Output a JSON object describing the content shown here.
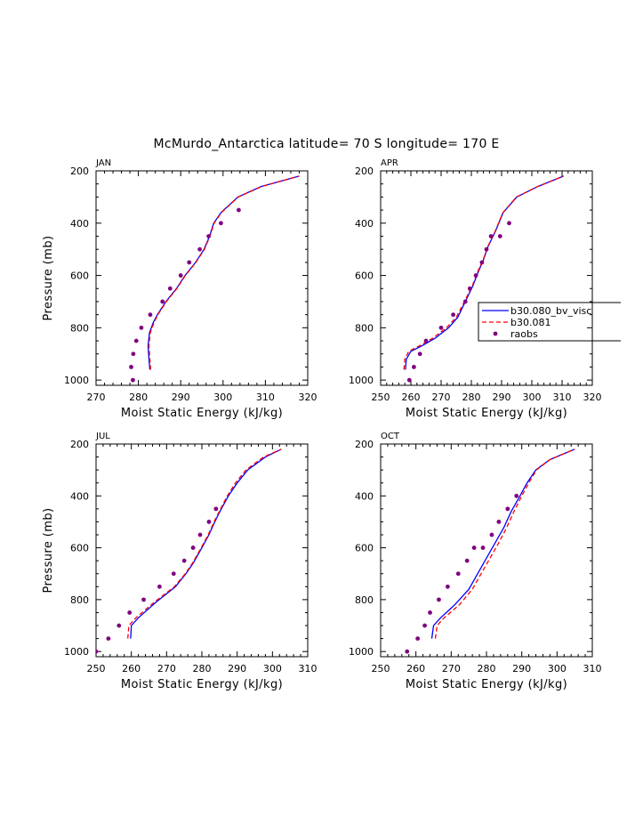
{
  "title": "McMurdo_Antarctica  latitude= 70 S longitude= 170 E",
  "colors": {
    "model_a": "#0000ff",
    "model_b": "#ff0000",
    "obs": "#800080",
    "axis": "#000000"
  },
  "legend": {
    "entries": [
      "b30.080_bv_visc",
      "b30.081",
      "raobs"
    ]
  },
  "chart_data": [
    {
      "type": "line",
      "panel": "JAN",
      "xlabel": "Moist Static Energy (kJ/kg)",
      "ylabel": "Pressure (mb)",
      "xlim": [
        270,
        320
      ],
      "xticks": [
        270,
        280,
        290,
        300,
        310,
        320
      ],
      "ylim": [
        200,
        1020
      ],
      "yticks": [
        200,
        400,
        600,
        800,
        1000
      ],
      "series": [
        {
          "name": "b30.080_bv_visc",
          "style": "solid",
          "points": [
            [
              282.7,
              960
            ],
            [
              282.5,
              920
            ],
            [
              282.3,
              870
            ],
            [
              282.6,
              820
            ],
            [
              283.5,
              780
            ],
            [
              284.5,
              750
            ],
            [
              286.5,
              700
            ],
            [
              289,
              650
            ],
            [
              291,
              600
            ],
            [
              293.5,
              550
            ],
            [
              295.5,
              500
            ],
            [
              296.8,
              450
            ],
            [
              297.8,
              400
            ],
            [
              299.5,
              360
            ],
            [
              303.5,
              300
            ],
            [
              309,
              260
            ],
            [
              318,
              220
            ]
          ]
        },
        {
          "name": "b30.081",
          "style": "dashed",
          "points": [
            [
              282.9,
              960
            ],
            [
              282.7,
              920
            ],
            [
              282.5,
              870
            ],
            [
              282.8,
              820
            ],
            [
              283.7,
              780
            ],
            [
              284.6,
              750
            ],
            [
              286.6,
              700
            ],
            [
              289.1,
              650
            ],
            [
              291.1,
              600
            ],
            [
              293.6,
              550
            ],
            [
              295.6,
              500
            ],
            [
              296.9,
              450
            ],
            [
              297.9,
              400
            ],
            [
              299.6,
              360
            ],
            [
              303.6,
              300
            ],
            [
              309.1,
              260
            ],
            [
              318,
              220
            ]
          ]
        },
        {
          "name": "raobs",
          "style": "marker",
          "points": [
            [
              278.7,
              1000
            ],
            [
              278.3,
              950
            ],
            [
              278.8,
              900
            ],
            [
              279.5,
              850
            ],
            [
              280.7,
              800
            ],
            [
              282.8,
              750
            ],
            [
              285.7,
              700
            ],
            [
              287.5,
              650
            ],
            [
              290,
              600
            ],
            [
              292,
              550
            ],
            [
              294.5,
              500
            ],
            [
              296.6,
              450
            ],
            [
              299.5,
              400
            ],
            [
              303.7,
              350
            ]
          ]
        }
      ]
    },
    {
      "type": "line",
      "panel": "APR",
      "xlabel": "Moist Static Energy (kJ/kg)",
      "ylabel": "",
      "xlim": [
        250,
        320
      ],
      "xticks": [
        250,
        260,
        270,
        280,
        290,
        300,
        310,
        320
      ],
      "ylim": [
        200,
        1020
      ],
      "yticks": [
        200,
        400,
        600,
        800,
        1000
      ],
      "series": [
        {
          "name": "b30.080_bv_visc",
          "style": "solid",
          "points": [
            [
              258.2,
              960
            ],
            [
              258.5,
              920
            ],
            [
              260,
              890
            ],
            [
              263.5,
              870
            ],
            [
              268,
              840
            ],
            [
              272.5,
              800
            ],
            [
              275.5,
              760
            ],
            [
              278,
              700
            ],
            [
              280.5,
              640
            ],
            [
              282.5,
              580
            ],
            [
              284,
              540
            ],
            [
              285.5,
              490
            ],
            [
              288,
              430
            ],
            [
              290.5,
              360
            ],
            [
              295,
              300
            ],
            [
              302,
              260
            ],
            [
              310.5,
              220
            ]
          ]
        },
        {
          "name": "b30.081",
          "style": "dashed",
          "points": [
            [
              257.7,
              960
            ],
            [
              258,
              920
            ],
            [
              259.3,
              890
            ],
            [
              262.7,
              870
            ],
            [
              267.2,
              840
            ],
            [
              271.8,
              800
            ],
            [
              275,
              760
            ],
            [
              277.7,
              700
            ],
            [
              280.3,
              640
            ],
            [
              282.3,
              580
            ],
            [
              283.9,
              540
            ],
            [
              285.4,
              490
            ],
            [
              287.9,
              430
            ],
            [
              290.4,
              360
            ],
            [
              294.9,
              300
            ],
            [
              301.9,
              260
            ],
            [
              310.5,
              220
            ]
          ]
        },
        {
          "name": "raobs",
          "style": "marker",
          "points": [
            [
              259.5,
              1000
            ],
            [
              261,
              950
            ],
            [
              263,
              900
            ],
            [
              265,
              850
            ],
            [
              270,
              800
            ],
            [
              274,
              750
            ],
            [
              278,
              700
            ],
            [
              279.5,
              650
            ],
            [
              281.5,
              600
            ],
            [
              283.5,
              550
            ],
            [
              285,
              500
            ],
            [
              286.5,
              450
            ],
            [
              289.5,
              450
            ],
            [
              292.5,
              400
            ]
          ]
        }
      ]
    },
    {
      "type": "line",
      "panel": "JUL",
      "xlabel": "Moist Static Energy (kJ/kg)",
      "ylabel": "Pressure (mb)",
      "xlim": [
        250,
        310
      ],
      "xticks": [
        250,
        260,
        270,
        280,
        290,
        300,
        310
      ],
      "ylim": [
        200,
        1020
      ],
      "yticks": [
        200,
        400,
        600,
        800,
        1000
      ],
      "series": [
        {
          "name": "b30.080_bv_visc",
          "style": "solid",
          "points": [
            [
              259.8,
              950
            ],
            [
              260,
              900
            ],
            [
              262,
              870
            ],
            [
              267,
              810
            ],
            [
              272.5,
              750
            ],
            [
              275.5,
              700
            ],
            [
              277.5,
              660
            ],
            [
              280,
              600
            ],
            [
              282,
              550
            ],
            [
              284,
              490
            ],
            [
              285.5,
              450
            ],
            [
              287.5,
              400
            ],
            [
              290,
              350
            ],
            [
              293,
              300
            ],
            [
              298,
              250
            ],
            [
              302.5,
              220
            ]
          ]
        },
        {
          "name": "b30.081",
          "style": "dashed",
          "points": [
            [
              259,
              950
            ],
            [
              259.3,
              900
            ],
            [
              261.3,
              870
            ],
            [
              266.5,
              810
            ],
            [
              272.2,
              750
            ],
            [
              275.3,
              700
            ],
            [
              277.3,
              660
            ],
            [
              279.8,
              600
            ],
            [
              281.8,
              550
            ],
            [
              283.8,
              490
            ],
            [
              285.3,
              450
            ],
            [
              287.2,
              400
            ],
            [
              289.5,
              350
            ],
            [
              292.5,
              300
            ],
            [
              297.5,
              250
            ],
            [
              302.5,
              220
            ]
          ]
        },
        {
          "name": "raobs",
          "style": "marker",
          "points": [
            [
              250,
              1000
            ],
            [
              253.5,
              950
            ],
            [
              256.5,
              900
            ],
            [
              259.5,
              850
            ],
            [
              263.5,
              800
            ],
            [
              268,
              750
            ],
            [
              272,
              700
            ],
            [
              275,
              650
            ],
            [
              277.5,
              600
            ],
            [
              279.5,
              550
            ],
            [
              282,
              500
            ],
            [
              284,
              450
            ]
          ]
        }
      ]
    },
    {
      "type": "line",
      "panel": "OCT",
      "xlabel": "Moist Static Energy (kJ/kg)",
      "ylabel": "",
      "xlim": [
        250,
        310
      ],
      "xticks": [
        250,
        260,
        270,
        280,
        290,
        300,
        310
      ],
      "ylim": [
        200,
        1020
      ],
      "yticks": [
        200,
        400,
        600,
        800,
        1000
      ],
      "series": [
        {
          "name": "b30.080_bv_visc",
          "style": "solid",
          "points": [
            [
              264.5,
              950
            ],
            [
              265,
              900
            ],
            [
              267,
              870
            ],
            [
              271,
              820
            ],
            [
              275,
              760
            ],
            [
              277.5,
              700
            ],
            [
              280,
              640
            ],
            [
              282.5,
              580
            ],
            [
              285,
              520
            ],
            [
              287,
              460
            ],
            [
              289.5,
              400
            ],
            [
              291.5,
              350
            ],
            [
              294,
              300
            ],
            [
              298,
              260
            ],
            [
              305,
              220
            ]
          ]
        },
        {
          "name": "b30.081",
          "style": "dashed",
          "points": [
            [
              265.5,
              950
            ],
            [
              266,
              900
            ],
            [
              268,
              870
            ],
            [
              272.3,
              820
            ],
            [
              276,
              760
            ],
            [
              278.5,
              700
            ],
            [
              281,
              640
            ],
            [
              283.5,
              580
            ],
            [
              285.8,
              520
            ],
            [
              287.8,
              460
            ],
            [
              290,
              400
            ],
            [
              292,
              350
            ],
            [
              294.2,
              300
            ],
            [
              298,
              260
            ],
            [
              305,
              220
            ]
          ]
        },
        {
          "name": "raobs",
          "style": "marker",
          "points": [
            [
              257.5,
              1000
            ],
            [
              260.5,
              950
            ],
            [
              262.5,
              900
            ],
            [
              264,
              850
            ],
            [
              266.5,
              800
            ],
            [
              269,
              750
            ],
            [
              272,
              700
            ],
            [
              274.5,
              650
            ],
            [
              276.5,
              600
            ],
            [
              279,
              600
            ],
            [
              281.5,
              550
            ],
            [
              283.5,
              500
            ],
            [
              286,
              450
            ],
            [
              288.5,
              400
            ]
          ]
        }
      ]
    }
  ]
}
